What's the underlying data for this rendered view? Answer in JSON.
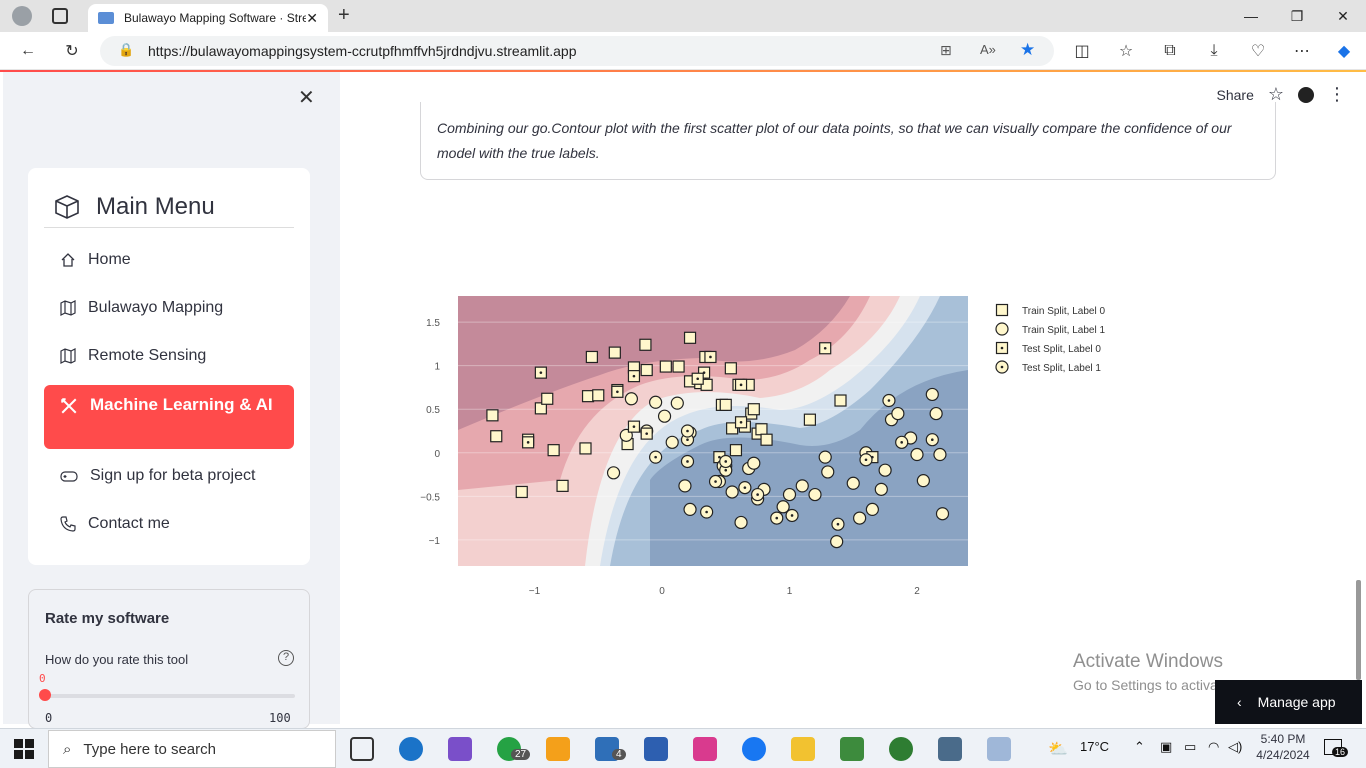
{
  "browser": {
    "tab_title": "Bulawayo Mapping Software · Streamlit",
    "url": "https://bulawayomappingsystem-ccrutpfhmffvh5jrdndjvu.streamlit.app"
  },
  "sidebar": {
    "menu_title": "Main Menu",
    "items": [
      {
        "label": "Home",
        "icon": "house-icon"
      },
      {
        "label": "Bulawayo Mapping",
        "icon": "map-icon"
      },
      {
        "label": "Remote Sensing",
        "icon": "map-icon"
      },
      {
        "label": "Machine Learning & AI",
        "icon": "tools-icon",
        "active": true
      },
      {
        "label": "Sign up for beta project",
        "icon": "controller-icon"
      },
      {
        "label": "Contact me",
        "icon": "phone-icon"
      }
    ],
    "rate": {
      "title": "Rate my software",
      "question": "How do you rate this tool",
      "value": "0",
      "min": "0",
      "max": "100",
      "level": 0
    }
  },
  "header": {
    "share": "Share"
  },
  "main": {
    "note": "Combining our go.Contour plot with the first scatter plot of our data points, so that we can visually compare the confidence of our model with the true labels."
  },
  "chart_data": {
    "type": "scatter",
    "title": "",
    "xlabel": "",
    "ylabel": "",
    "xlim": [
      -1.6,
      2.4
    ],
    "ylim": [
      -1.3,
      1.8
    ],
    "xticks": [
      "−1",
      "0",
      "1",
      "2"
    ],
    "yticks": [
      "1.5",
      "1",
      "0.5",
      "0",
      "−0.5",
      "−1"
    ],
    "legend_position": "right",
    "colors": {
      "label0": "#c48a9a",
      "label1": "#7d9cc0",
      "marker_fill": "#fff7cc"
    },
    "series": [
      {
        "name": "Train Split, Label 0",
        "marker": "square",
        "x": [
          -1.33,
          -1.3,
          -1.05,
          -1.1,
          -0.95,
          -0.9,
          -0.85,
          -0.78,
          -0.6,
          -0.58,
          -0.55,
          -0.5,
          -0.37,
          -0.35,
          -0.27,
          -0.22,
          -0.13,
          -0.12,
          0.03,
          0.13,
          0.22,
          0.34,
          0.47,
          0.54,
          0.6,
          0.68,
          0.75,
          0.78,
          0.7,
          0.82,
          0.22,
          0.3,
          0.35,
          0.5,
          0.65,
          0.72,
          1.16,
          1.4,
          0.55,
          0.58
        ],
        "y": [
          0.43,
          0.19,
          0.15,
          -0.45,
          0.51,
          0.62,
          0.03,
          -0.38,
          0.05,
          0.65,
          1.1,
          0.66,
          1.15,
          0.72,
          0.1,
          0.98,
          1.24,
          0.95,
          0.99,
          0.99,
          1.32,
          1.1,
          0.55,
          0.97,
          0.78,
          0.78,
          0.22,
          0.27,
          0.45,
          0.15,
          0.82,
          0.8,
          0.78,
          0.55,
          0.3,
          0.5,
          0.38,
          0.6,
          0.28,
          0.03
        ]
      },
      {
        "name": "Train Split, Label 1",
        "marker": "circle",
        "x": [
          -0.38,
          -0.28,
          -0.24,
          -0.12,
          -0.05,
          0.02,
          0.08,
          0.12,
          0.18,
          0.22,
          0.22,
          0.45,
          0.5,
          0.55,
          0.62,
          0.75,
          0.8,
          0.95,
          1.1,
          1.2,
          1.3,
          1.37,
          1.5,
          1.55,
          1.6,
          1.65,
          1.72,
          1.75,
          1.8,
          1.85,
          1.95,
          2.0,
          2.05,
          2.12,
          2.15,
          2.18,
          2.2,
          1.28,
          1.0,
          0.68,
          0.72
        ],
        "y": [
          -0.23,
          0.2,
          0.62,
          0.25,
          0.58,
          0.42,
          0.12,
          0.57,
          -0.38,
          0.23,
          -0.65,
          -0.33,
          -0.15,
          -0.45,
          -0.8,
          -0.53,
          -0.42,
          -0.62,
          -0.38,
          -0.48,
          -0.22,
          -1.02,
          -0.35,
          -0.75,
          0.0,
          -0.65,
          -0.42,
          -0.2,
          0.38,
          0.45,
          0.17,
          -0.02,
          -0.32,
          0.67,
          0.45,
          -0.02,
          -0.7,
          -0.05,
          -0.48,
          -0.18,
          -0.12
        ]
      },
      {
        "name": "Test Split, Label 0",
        "marker": "square-dot",
        "x": [
          -0.95,
          -1.05,
          -0.12,
          -0.35,
          -0.22,
          0.33,
          0.28,
          0.38,
          0.62,
          0.45,
          1.28,
          1.65,
          -0.22,
          0.62
        ],
        "y": [
          0.92,
          0.12,
          0.22,
          0.7,
          0.88,
          0.92,
          0.85,
          1.1,
          0.35,
          -0.05,
          1.2,
          -0.05,
          0.3,
          0.78
        ],
        "note_only": true
      },
      {
        "name": "Test Split, Label 1",
        "marker": "circle-dot",
        "x": [
          -0.05,
          0.2,
          0.2,
          0.35,
          0.42,
          0.48,
          0.5,
          0.65,
          0.9,
          1.02,
          1.38,
          1.6,
          1.78,
          1.88,
          2.12,
          0.2,
          0.5,
          0.75
        ],
        "y": [
          -0.05,
          0.15,
          -0.1,
          -0.68,
          -0.33,
          -0.15,
          -0.2,
          -0.4,
          -0.75,
          -0.72,
          -0.82,
          -0.08,
          0.6,
          0.12,
          0.15,
          0.25,
          -0.1,
          -0.48
        ]
      }
    ]
  },
  "watermark": {
    "line1": "Activate Windows",
    "line2": "Go to Settings to activate Windows."
  },
  "manage_app": "Manage app",
  "taskbar": {
    "search_placeholder": "Type here to search",
    "whatsapp_badge": "27",
    "mail_badge": "4",
    "weather": "17°C",
    "time": "5:40 PM",
    "date": "4/24/2024",
    "notifications": "16"
  }
}
